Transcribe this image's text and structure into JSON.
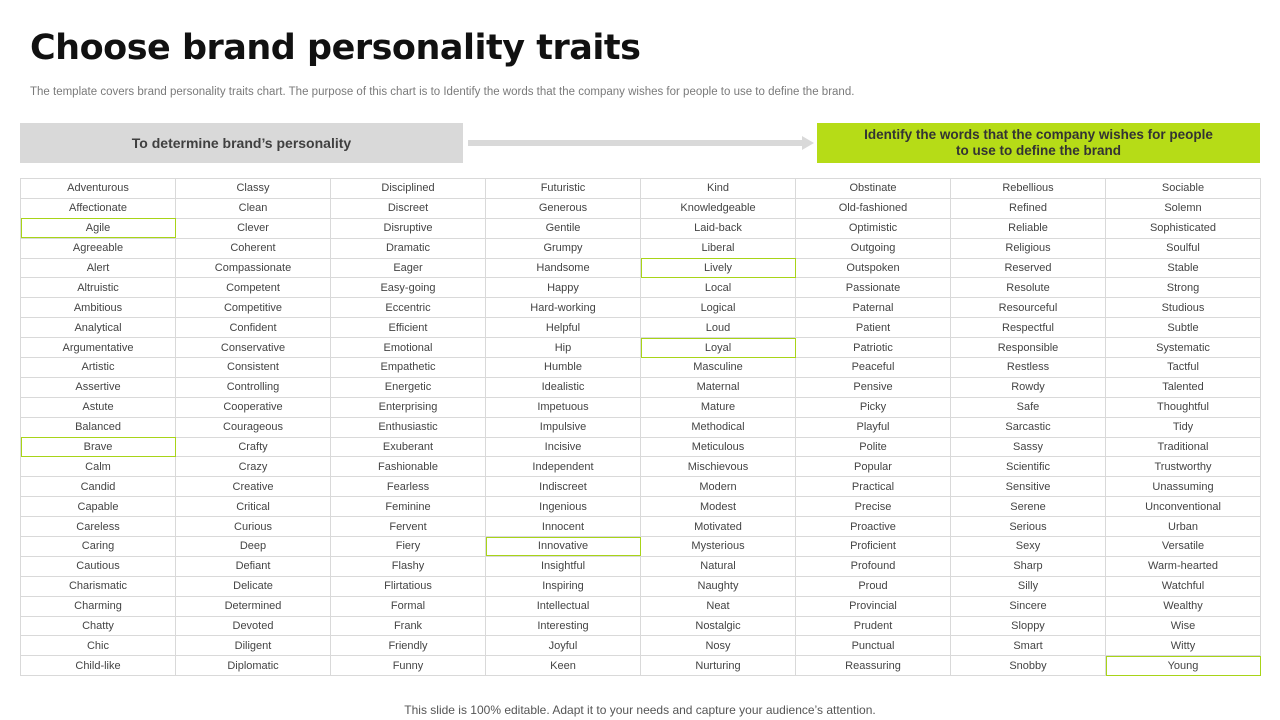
{
  "title": "Choose brand personality traits",
  "subtitle": "The template covers brand personality traits chart. The purpose of this chart is to Identify the words that the company wishes for people to use to define the brand.",
  "left_box": "To determine brand’s personality",
  "right_box": "Identify the words that the company  wishes for people to use to define the brand",
  "footer": "This slide is 100% editable. Adapt it to your needs and capture your audience’s attention.",
  "colors": {
    "accent": "#b6dc17",
    "gray_box": "#d9d9d9",
    "arrow": "#d9d9d9"
  },
  "icons": [
    "right-arrow-icon"
  ],
  "highlighted": [
    "Agile",
    "Brave",
    "Innovative",
    "Lively",
    "Loyal",
    "Young"
  ],
  "columns": [
    [
      "Adventurous",
      "Affectionate",
      "Agile",
      "Agreeable",
      "Alert",
      "Altruistic",
      "Ambitious",
      "Analytical",
      "Argumentative",
      "Artistic",
      "Assertive",
      "Astute",
      "Balanced",
      "Brave",
      "Calm",
      "Candid",
      "Capable",
      "Careless",
      "Caring",
      "Cautious",
      "Charismatic",
      "Charming",
      "Chatty",
      "Chic",
      "Child-like"
    ],
    [
      "Classy",
      "Clean",
      "Clever",
      "Coherent",
      "Compassionate",
      "Competent",
      "Competitive",
      "Confident",
      "Conservative",
      "Consistent",
      "Controlling",
      "Cooperative",
      "Courageous",
      "Crafty",
      "Crazy",
      "Creative",
      "Critical",
      "Curious",
      "Deep",
      "Defiant",
      "Delicate",
      "Determined",
      "Devoted",
      "Diligent",
      "Diplomatic"
    ],
    [
      "Disciplined",
      "Discreet",
      "Disruptive",
      "Dramatic",
      "Eager",
      "Easy-going",
      "Eccentric",
      "Efficient",
      "Emotional",
      "Empathetic",
      "Energetic",
      "Enterprising",
      "Enthusiastic",
      "Exuberant",
      "Fashionable",
      "Fearless",
      "Feminine",
      "Fervent",
      "Fiery",
      "Flashy",
      "Flirtatious",
      "Formal",
      "Frank",
      "Friendly",
      "Funny"
    ],
    [
      "Futuristic",
      "Generous",
      "Gentile",
      "Grumpy",
      "Handsome",
      "Happy",
      "Hard-working",
      "Helpful",
      "Hip",
      "Humble",
      "Idealistic",
      "Impetuous",
      "Impulsive",
      "Incisive",
      "Independent",
      "Indiscreet",
      "Ingenious",
      "Innocent",
      "Innovative",
      "Insightful",
      "Inspiring",
      "Intellectual",
      "Interesting",
      "Joyful",
      "Keen"
    ],
    [
      "Kind",
      "Knowledgeable",
      "Laid-back",
      "Liberal",
      "Lively",
      "Local",
      "Logical",
      "Loud",
      "Loyal",
      "Masculine",
      "Maternal",
      "Mature",
      "Methodical",
      "Meticulous",
      "Mischievous",
      "Modern",
      "Modest",
      "Motivated",
      "Mysterious",
      "Natural",
      "Naughty",
      "Neat",
      "Nostalgic",
      "Nosy",
      "Nurturing"
    ],
    [
      "Obstinate",
      "Old-fashioned",
      "Optimistic",
      "Outgoing",
      "Outspoken",
      "Passionate",
      "Paternal",
      "Patient",
      "Patriotic",
      "Peaceful",
      "Pensive",
      "Picky",
      "Playful",
      "Polite",
      "Popular",
      "Practical",
      "Precise",
      "Proactive",
      "Proficient",
      "Profound",
      "Proud",
      "Provincial",
      "Prudent",
      "Punctual",
      "Reassuring"
    ],
    [
      "Rebellious",
      "Refined",
      "Reliable",
      "Religious",
      "Reserved",
      "Resolute",
      "Resourceful",
      "Respectful",
      "Responsible",
      "Restless",
      "Rowdy",
      "Safe",
      "Sarcastic",
      "Sassy",
      "Scientific",
      "Sensitive",
      "Serene",
      "Serious",
      "Sexy",
      "Sharp",
      "Silly",
      "Sincere",
      "Sloppy",
      "Smart",
      "Snobby"
    ],
    [
      "Sociable",
      "Solemn",
      "Sophisticated",
      "Soulful",
      "Stable",
      "Strong",
      "Studious",
      "Subtle",
      "Systematic",
      "Tactful",
      "Talented",
      "Thoughtful",
      "Tidy",
      "Traditional",
      "Trustworthy",
      "Unassuming",
      "Unconventional",
      "Urban",
      "Versatile",
      "Warm-hearted",
      "Watchful",
      "Wealthy",
      "Wise",
      "Witty",
      "Young"
    ]
  ]
}
